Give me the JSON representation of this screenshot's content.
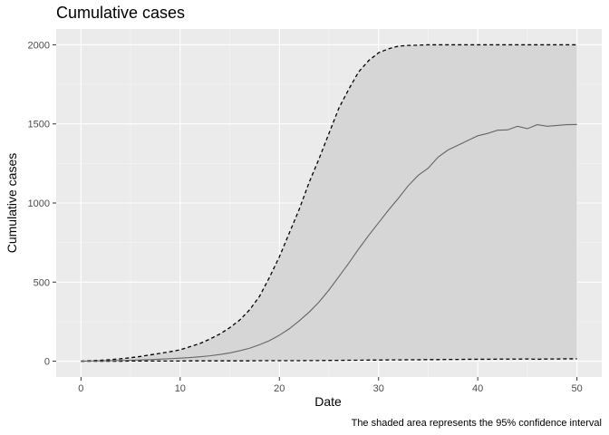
{
  "chart_data": {
    "type": "line",
    "title": "Cumulative cases",
    "xlabel": "Date",
    "ylabel": "Cumulative cases",
    "caption": "The shaded area represents the 95% confidence interval",
    "xlim": [
      -2.5,
      52.5
    ],
    "ylim": [
      -100,
      2100
    ],
    "xticks": [
      0,
      10,
      20,
      30,
      40,
      50
    ],
    "yticks": [
      0,
      500,
      1000,
      1500,
      2000
    ],
    "xtick_labels": [
      "0",
      "10",
      "20",
      "30",
      "40",
      "50"
    ],
    "ytick_labels": [
      "0",
      "500",
      "1000",
      "1500",
      "2000"
    ],
    "grid": true,
    "x": [
      0,
      1,
      2,
      3,
      4,
      5,
      6,
      7,
      8,
      9,
      10,
      11,
      12,
      13,
      14,
      15,
      16,
      17,
      18,
      19,
      20,
      21,
      22,
      23,
      24,
      25,
      26,
      27,
      28,
      29,
      30,
      31,
      32,
      33,
      34,
      35,
      36,
      37,
      38,
      39,
      40,
      41,
      42,
      43,
      44,
      45,
      46,
      47,
      48,
      49,
      50
    ],
    "series": [
      {
        "role": "estimate",
        "values": [
          0,
          1,
          2,
          3,
          4,
          6,
          8,
          10,
          13,
          16,
          19,
          23,
          28,
          34,
          42,
          52,
          66,
          82,
          104,
          130,
          164,
          205,
          255,
          310,
          374,
          450,
          535,
          620,
          710,
          795,
          875,
          955,
          1030,
          1110,
          1175,
          1220,
          1290,
          1335,
          1365,
          1395,
          1425,
          1440,
          1460,
          1462,
          1485,
          1470,
          1495,
          1485,
          1490,
          1495,
          1496
        ]
      },
      {
        "role": "upper-95",
        "values": [
          0,
          3,
          6,
          10,
          15,
          22,
          30,
          40,
          50,
          60,
          72,
          92,
          112,
          140,
          172,
          212,
          260,
          325,
          410,
          530,
          660,
          810,
          960,
          1130,
          1280,
          1440,
          1600,
          1720,
          1830,
          1900,
          1950,
          1975,
          1992,
          1996,
          1998,
          2000,
          2000,
          2000,
          2000,
          2000,
          2000,
          2000,
          2000,
          2000,
          2000,
          2000,
          2000,
          2000,
          2000,
          2000,
          2000
        ]
      },
      {
        "role": "lower-95",
        "values": [
          0,
          0,
          0,
          0,
          0,
          1,
          1,
          1,
          1,
          1,
          1,
          2,
          2,
          2,
          2,
          2,
          2,
          2,
          3,
          3,
          3,
          3,
          3,
          4,
          4,
          5,
          5,
          6,
          6,
          7,
          7,
          8,
          8,
          9,
          9,
          10,
          10,
          11,
          11,
          12,
          12,
          12,
          13,
          13,
          13,
          14,
          12,
          14,
          14,
          15,
          15
        ]
      }
    ],
    "colors": {
      "panel_background": "#ebebeb",
      "grid_major": "#ffffff",
      "grid_minor": "#f5f5f5",
      "ribbon_fill": "#d6d6d6",
      "estimate_line": "#666666",
      "bound_line": "#000000"
    }
  }
}
